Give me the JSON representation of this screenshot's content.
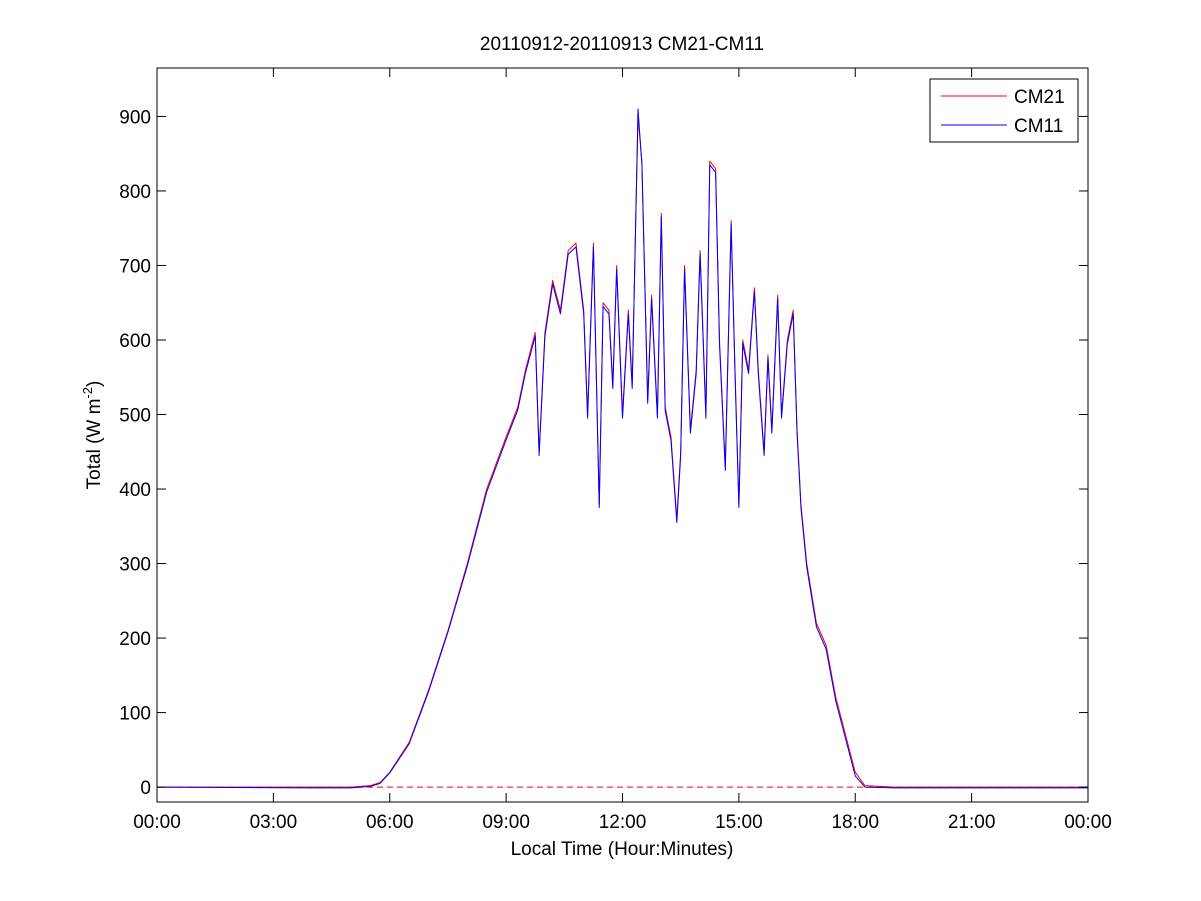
{
  "chart_data": {
    "type": "line",
    "title": "20110912-20110913 CM21-CM11",
    "xlabel": "Local Time (Hour:Minutes)",
    "ylabel_main": "Total (W m",
    "ylabel_sup": "-2",
    "ylabel_close": ")",
    "xlim": [
      0,
      24
    ],
    "ylim": [
      -20,
      965
    ],
    "x_ticks": [
      {
        "value": 0,
        "label": "00:00"
      },
      {
        "value": 3,
        "label": "03:00"
      },
      {
        "value": 6,
        "label": "06:00"
      },
      {
        "value": 9,
        "label": "09:00"
      },
      {
        "value": 12,
        "label": "12:00"
      },
      {
        "value": 15,
        "label": "15:00"
      },
      {
        "value": 18,
        "label": "18:00"
      },
      {
        "value": 21,
        "label": "21:00"
      },
      {
        "value": 24,
        "label": "00:00"
      }
    ],
    "y_ticks": [
      {
        "value": 0,
        "label": "0"
      },
      {
        "value": 100,
        "label": "100"
      },
      {
        "value": 200,
        "label": "200"
      },
      {
        "value": 300,
        "label": "300"
      },
      {
        "value": 400,
        "label": "400"
      },
      {
        "value": 500,
        "label": "500"
      },
      {
        "value": 600,
        "label": "600"
      },
      {
        "value": 700,
        "label": "700"
      },
      {
        "value": 800,
        "label": "800"
      },
      {
        "value": 900,
        "label": "900"
      }
    ],
    "grid": false,
    "legend_position": "top-right",
    "zero_reference_line": {
      "y": 0,
      "style": "dashed",
      "color": "#ff0000"
    },
    "series": [
      {
        "name": "CM21",
        "color": "#ff0000",
        "points": [
          [
            0,
            0
          ],
          [
            4,
            0
          ],
          [
            5,
            0
          ],
          [
            5.5,
            2
          ],
          [
            5.75,
            6
          ],
          [
            6,
            20
          ],
          [
            6.5,
            60
          ],
          [
            7,
            130
          ],
          [
            7.5,
            210
          ],
          [
            8,
            300
          ],
          [
            8.5,
            400
          ],
          [
            9,
            470
          ],
          [
            9.3,
            510
          ],
          [
            9.5,
            560
          ],
          [
            9.75,
            610
          ],
          [
            9.85,
            450
          ],
          [
            10,
            610
          ],
          [
            10.2,
            680
          ],
          [
            10.4,
            640
          ],
          [
            10.6,
            720
          ],
          [
            10.8,
            730
          ],
          [
            11,
            640
          ],
          [
            11.1,
            500
          ],
          [
            11.25,
            730
          ],
          [
            11.4,
            380
          ],
          [
            11.5,
            650
          ],
          [
            11.65,
            640
          ],
          [
            11.75,
            540
          ],
          [
            11.85,
            700
          ],
          [
            12,
            500
          ],
          [
            12.15,
            640
          ],
          [
            12.25,
            540
          ],
          [
            12.4,
            900
          ],
          [
            12.5,
            840
          ],
          [
            12.65,
            520
          ],
          [
            12.75,
            660
          ],
          [
            12.9,
            500
          ],
          [
            13,
            770
          ],
          [
            13.1,
            510
          ],
          [
            13.25,
            470
          ],
          [
            13.4,
            360
          ],
          [
            13.5,
            450
          ],
          [
            13.6,
            700
          ],
          [
            13.75,
            480
          ],
          [
            13.9,
            560
          ],
          [
            14,
            720
          ],
          [
            14.15,
            500
          ],
          [
            14.25,
            840
          ],
          [
            14.4,
            830
          ],
          [
            14.5,
            600
          ],
          [
            14.65,
            430
          ],
          [
            14.8,
            760
          ],
          [
            14.9,
            560
          ],
          [
            15,
            380
          ],
          [
            15.1,
            600
          ],
          [
            15.25,
            560
          ],
          [
            15.4,
            670
          ],
          [
            15.5,
            560
          ],
          [
            15.65,
            450
          ],
          [
            15.75,
            580
          ],
          [
            15.85,
            480
          ],
          [
            16,
            660
          ],
          [
            16.1,
            500
          ],
          [
            16.25,
            600
          ],
          [
            16.4,
            640
          ],
          [
            16.5,
            480
          ],
          [
            16.6,
            380
          ],
          [
            16.75,
            300
          ],
          [
            17,
            220
          ],
          [
            17.25,
            190
          ],
          [
            17.5,
            120
          ],
          [
            17.75,
            70
          ],
          [
            18,
            20
          ],
          [
            18.25,
            2
          ],
          [
            19,
            0
          ],
          [
            24,
            0
          ]
        ]
      },
      {
        "name": "CM11",
        "color": "#0000ff",
        "points": [
          [
            0,
            0
          ],
          [
            4,
            -1
          ],
          [
            5,
            -1
          ],
          [
            5.5,
            1
          ],
          [
            5.75,
            5
          ],
          [
            6,
            19
          ],
          [
            6.5,
            58
          ],
          [
            7,
            128
          ],
          [
            7.5,
            208
          ],
          [
            8,
            297
          ],
          [
            8.5,
            396
          ],
          [
            9,
            466
          ],
          [
            9.3,
            506
          ],
          [
            9.5,
            556
          ],
          [
            9.75,
            605
          ],
          [
            9.85,
            445
          ],
          [
            10,
            605
          ],
          [
            10.2,
            675
          ],
          [
            10.4,
            635
          ],
          [
            10.6,
            715
          ],
          [
            10.8,
            725
          ],
          [
            11,
            635
          ],
          [
            11.1,
            495
          ],
          [
            11.25,
            725
          ],
          [
            11.4,
            375
          ],
          [
            11.5,
            645
          ],
          [
            11.65,
            635
          ],
          [
            11.75,
            535
          ],
          [
            11.85,
            695
          ],
          [
            12,
            495
          ],
          [
            12.15,
            635
          ],
          [
            12.25,
            535
          ],
          [
            12.4,
            910
          ],
          [
            12.5,
            835
          ],
          [
            12.65,
            515
          ],
          [
            12.75,
            655
          ],
          [
            12.9,
            495
          ],
          [
            13,
            765
          ],
          [
            13.1,
            505
          ],
          [
            13.25,
            465
          ],
          [
            13.4,
            355
          ],
          [
            13.5,
            445
          ],
          [
            13.6,
            695
          ],
          [
            13.75,
            475
          ],
          [
            13.9,
            555
          ],
          [
            14,
            715
          ],
          [
            14.15,
            495
          ],
          [
            14.25,
            835
          ],
          [
            14.4,
            825
          ],
          [
            14.5,
            595
          ],
          [
            14.65,
            425
          ],
          [
            14.8,
            755
          ],
          [
            14.9,
            555
          ],
          [
            15,
            375
          ],
          [
            15.1,
            595
          ],
          [
            15.25,
            555
          ],
          [
            15.4,
            665
          ],
          [
            15.5,
            555
          ],
          [
            15.65,
            445
          ],
          [
            15.75,
            575
          ],
          [
            15.85,
            475
          ],
          [
            16,
            655
          ],
          [
            16.1,
            495
          ],
          [
            16.25,
            595
          ],
          [
            16.4,
            635
          ],
          [
            16.5,
            475
          ],
          [
            16.6,
            375
          ],
          [
            16.75,
            295
          ],
          [
            17,
            215
          ],
          [
            17.25,
            185
          ],
          [
            17.5,
            115
          ],
          [
            17.75,
            65
          ],
          [
            18,
            15
          ],
          [
            18.25,
            0
          ],
          [
            19,
            -1
          ],
          [
            24,
            -1
          ]
        ]
      }
    ]
  }
}
